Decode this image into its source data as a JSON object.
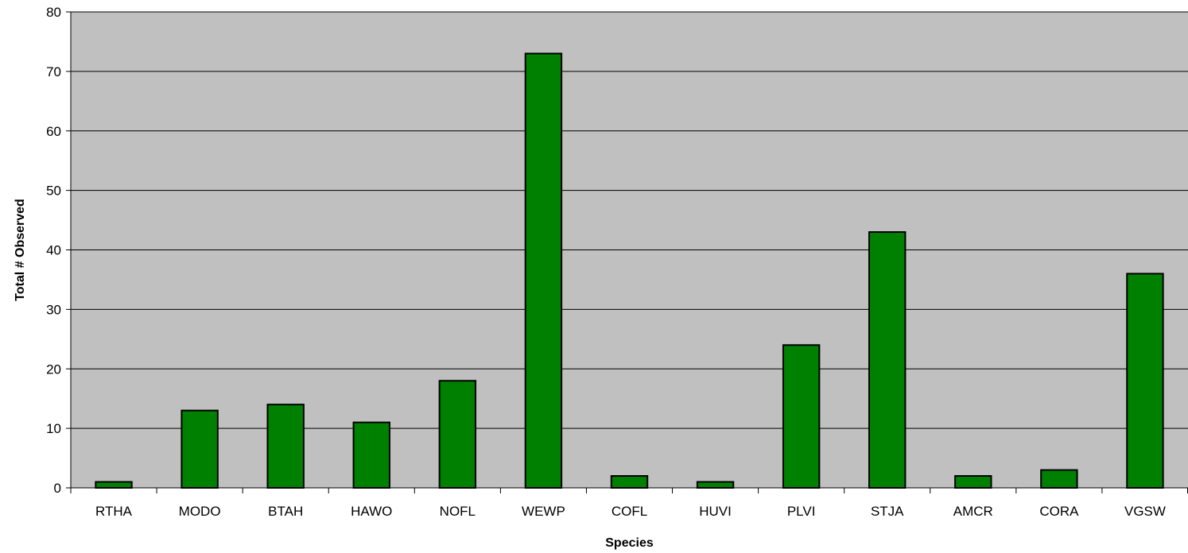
{
  "chart_data": {
    "type": "bar",
    "title": "",
    "xlabel": "Species",
    "ylabel": "Total # Observed",
    "categories": [
      "RTHA",
      "MODO",
      "BTAH",
      "HAWO",
      "NOFL",
      "WEWP",
      "COFL",
      "HUVI",
      "PLVI",
      "STJA",
      "AMCR",
      "CORA",
      "VGSW"
    ],
    "values": [
      1,
      13,
      14,
      11,
      18,
      73,
      2,
      1,
      24,
      43,
      2,
      3,
      36
    ],
    "ylim": [
      0,
      80
    ],
    "yticks": [
      0,
      10,
      20,
      30,
      40,
      50,
      60,
      70,
      80
    ],
    "grid": true,
    "legend": "none",
    "colors": {
      "bar_fill": "#008000",
      "bar_stroke": "#000000",
      "plot_background": "#c0c0c0",
      "gridline": "#000000",
      "page_background": "#ffffff"
    }
  }
}
